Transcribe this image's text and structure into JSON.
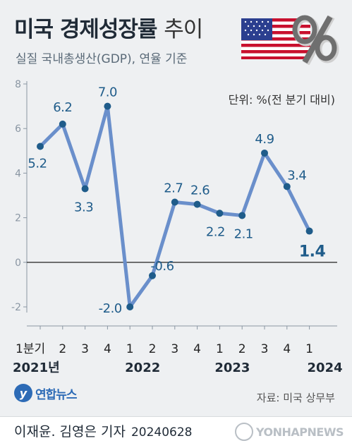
{
  "title": "미국 경제성장률",
  "title_suffix": "추이",
  "subtitle": "실질 국내총생산(GDP), 연율 기준",
  "unit": "단위: %(전 분기 대비)",
  "source": "자료: 미국 상무부",
  "logo_name": "연합뉴스",
  "credit": "이재윤. 김영은 기자",
  "credit_date": "20240628",
  "watermark": "YONHAPNEWS",
  "colors": {
    "line": "#6a8fcb",
    "marker": "#1f5c8a",
    "label": "#1f5c8a",
    "axis": "#8a96a3",
    "zero_line": "#333333"
  },
  "chart_data": {
    "type": "line",
    "title": "미국 경제성장률 추이",
    "subtitle": "실질 국내총생산(GDP), 연율 기준",
    "unit": "단위: %(전 분기 대비)",
    "ylim": [
      -2,
      8
    ],
    "yticks": [
      -2,
      0,
      2,
      4,
      6,
      8
    ],
    "grid": false,
    "x_quarters": [
      "1분기",
      "2",
      "3",
      "4",
      "1",
      "2",
      "3",
      "4",
      "1",
      "2",
      "3",
      "4",
      "1"
    ],
    "x_years": [
      {
        "label": "2021년",
        "index": 0
      },
      {
        "label": "2022",
        "index": 4
      },
      {
        "label": "2023",
        "index": 8
      },
      {
        "label": "2024",
        "index": 12
      }
    ],
    "values": [
      5.2,
      6.2,
      3.3,
      7.0,
      -2.0,
      -0.6,
      2.7,
      2.6,
      2.2,
      2.1,
      4.9,
      3.4,
      1.4
    ],
    "value_labels": [
      "5.2",
      "6.2",
      "3.3",
      "7.0",
      "-2.0",
      "-0.6",
      "2.7",
      "2.6",
      "2.2",
      "2.1",
      "4.9",
      "3.4",
      "1.4"
    ],
    "highlight_last": true
  }
}
